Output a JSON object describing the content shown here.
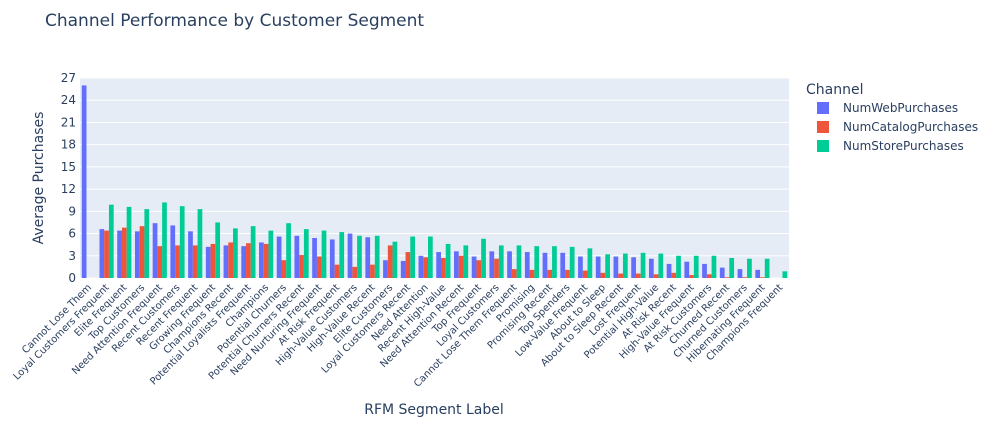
{
  "chart_data": {
    "type": "bar",
    "title": "Channel Performance by Customer Segment",
    "xlabel": "RFM Segment Label",
    "ylabel": "Average Purchases",
    "ylim": [
      0,
      27
    ],
    "yticks": [
      0,
      3,
      6,
      9,
      12,
      15,
      18,
      21,
      24,
      27
    ],
    "grid": true,
    "legend": {
      "title": "Channel",
      "position": "right"
    },
    "categories": [
      "Cannot Lose Them",
      "Loyal Customers Frequent",
      "Elite Frequent",
      "Top Customers",
      "Need Attention Frequent",
      "Recent Customers",
      "Recent Frequent",
      "Growing Frequent",
      "Champions Recent",
      "Potential Loyalists Frequent",
      "Champions",
      "Potential Churners",
      "Potential Churners Recent",
      "Need Nurturing Frequent",
      "At Risk Frequent",
      "High-Value Customers",
      "High-Value Recent",
      "Elite Customers",
      "Loyal Customers Recent",
      "Need Attention",
      "Recent High-Value",
      "Need Attention Recent",
      "Top Frequent",
      "Loyal Customers",
      "Cannot Lose Them Frequent",
      "Promising",
      "Promising Recent",
      "Top Spenders",
      "Low-Value Frequent",
      "About to Sleep",
      "About to Sleep Recent",
      "Lost Frequent",
      "Potential High-Value",
      "At Risk Recent",
      "High-Value Frequent",
      "At Risk Customers",
      "Churned Recent",
      "Churned Customers",
      "Hibernating Frequent",
      "Champions Frequent"
    ],
    "series": [
      {
        "name": "NumWebPurchases",
        "color": "#636efa",
        "values": [
          26,
          6.6,
          6.4,
          6.3,
          7.4,
          7.1,
          6.3,
          4.2,
          4.4,
          4.3,
          4.8,
          5.6,
          5.7,
          5.4,
          5.2,
          6,
          5.5,
          2.4,
          2.3,
          3,
          3.5,
          3.6,
          2.9,
          3.6,
          3.6,
          3.5,
          3.4,
          3.4,
          2.9,
          2.9,
          2.9,
          2.8,
          2.6,
          1.9,
          2.2,
          1.9,
          1.4,
          1.2,
          1.1,
          0
        ]
      },
      {
        "name": "NumCatalogPurchases",
        "color": "#ef553b",
        "values": [
          0,
          6.4,
          6.8,
          7.0,
          4.3,
          4.4,
          4.4,
          4.6,
          4.8,
          4.7,
          4.6,
          2.4,
          3.1,
          2.9,
          1.8,
          1.5,
          1.8,
          4.4,
          3.5,
          2.8,
          2.7,
          3.0,
          2.4,
          2.6,
          1.2,
          1.1,
          1.1,
          1.1,
          1.0,
          0.7,
          0.6,
          0.6,
          0.5,
          0.7,
          0.4,
          0.5,
          0.1,
          0.1,
          0.1,
          0
        ]
      },
      {
        "name": "NumStorePurchases",
        "color": "#00cc96",
        "values": [
          0,
          9.9,
          9.6,
          9.3,
          10.2,
          9.7,
          9.3,
          7.5,
          6.7,
          7,
          6.4,
          7.4,
          6.6,
          6.4,
          6.2,
          5.7,
          5.7,
          4.9,
          5.6,
          5.6,
          4.6,
          4.4,
          5.3,
          4.4,
          4.4,
          4.3,
          4.3,
          4.2,
          4.0,
          3.2,
          3.3,
          3.4,
          3.3,
          3.0,
          3.0,
          3.0,
          2.7,
          2.6,
          2.6,
          0.9
        ]
      }
    ]
  }
}
